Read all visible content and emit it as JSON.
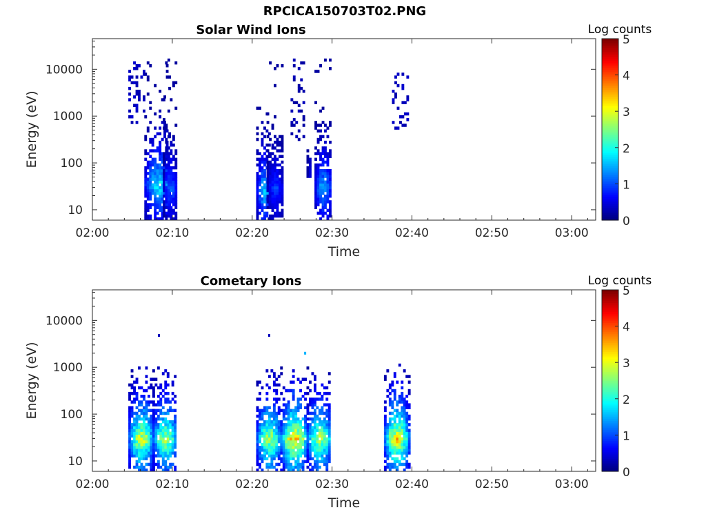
{
  "figure": {
    "title": "RPCICA150703T02.PNG",
    "background": "#ffffff"
  },
  "chart_data": [
    {
      "type": "heatmap",
      "title": "Solar Wind Ions",
      "xlabel": "Time",
      "ylabel": "Energy (eV)",
      "x_ticks": [
        "02:00",
        "02:10",
        "02:20",
        "02:30",
        "02:40",
        "02:50",
        "03:00"
      ],
      "x_range_minutes": [
        0,
        63
      ],
      "y_scale": "log",
      "y_ticks": [
        "10",
        "100",
        "1000",
        "10000"
      ],
      "y_range": [
        6,
        45000
      ],
      "colorbar": {
        "label": "Log counts",
        "ticks": [
          "0",
          "1",
          "2",
          "3",
          "4",
          "5"
        ],
        "range": [
          0,
          5
        ],
        "colormap": "jet"
      },
      "bursts": [
        {
          "t_start": 4.5,
          "t_end": 6.5,
          "e_min": 700,
          "e_max": 15000,
          "peak_log_counts": 0.4,
          "sparse": true
        },
        {
          "t_start": 6.5,
          "t_end": 9.8,
          "e_min": 6,
          "e_max": 15000,
          "peak_log_counts": 2.0,
          "core_energy": 35
        },
        {
          "t_start": 8.8,
          "t_end": 10.5,
          "e_min": 6,
          "e_max": 18000,
          "peak_log_counts": 1.2,
          "core_energy": 30
        },
        {
          "t_start": 20.5,
          "t_end": 22.3,
          "e_min": 6,
          "e_max": 4000,
          "peak_log_counts": 1.8,
          "core_energy": 25
        },
        {
          "t_start": 21.8,
          "t_end": 23.8,
          "e_min": 6,
          "e_max": 14000,
          "peak_log_counts": 1.0,
          "core_energy": 30
        },
        {
          "t_start": 24.8,
          "t_end": 26.5,
          "e_min": 300,
          "e_max": 18000,
          "peak_log_counts": 0.3,
          "sparse": true
        },
        {
          "t_start": 26.8,
          "t_end": 27.3,
          "e_min": 50,
          "e_max": 250,
          "peak_log_counts": 0.8
        },
        {
          "t_start": 27.8,
          "t_end": 29.8,
          "e_min": 6,
          "e_max": 20000,
          "peak_log_counts": 1.6,
          "core_energy": 30
        },
        {
          "t_start": 37.5,
          "t_end": 39.5,
          "e_min": 500,
          "e_max": 9000,
          "peak_log_counts": 0.4,
          "sparse": true
        }
      ]
    },
    {
      "type": "heatmap",
      "title": "Cometary Ions",
      "xlabel": "Time",
      "ylabel": "Energy (eV)",
      "x_ticks": [
        "02:00",
        "02:10",
        "02:20",
        "02:30",
        "02:40",
        "02:50",
        "03:00"
      ],
      "x_range_minutes": [
        0,
        63
      ],
      "y_scale": "log",
      "y_ticks": [
        "10",
        "100",
        "1000",
        "10000"
      ],
      "y_range": [
        6,
        45000
      ],
      "colorbar": {
        "label": "Log counts",
        "ticks": [
          "0",
          "1",
          "2",
          "3",
          "4",
          "5"
        ],
        "range": [
          0,
          5
        ],
        "colormap": "jet"
      },
      "bursts": [
        {
          "t_start": 4.5,
          "t_end": 7.5,
          "e_min": 6,
          "e_max": 1000,
          "peak_log_counts": 3.2,
          "core_energy": 30
        },
        {
          "t_start": 7.5,
          "t_end": 10.5,
          "e_min": 6,
          "e_max": 1200,
          "peak_log_counts": 3.0,
          "core_energy": 30
        },
        {
          "t_start": 20.5,
          "t_end": 23.5,
          "e_min": 6,
          "e_max": 1000,
          "peak_log_counts": 3.0,
          "core_energy": 30
        },
        {
          "t_start": 23.5,
          "t_end": 26.8,
          "e_min": 6,
          "e_max": 1000,
          "peak_log_counts": 3.6,
          "core_energy": 30
        },
        {
          "t_start": 26.8,
          "t_end": 29.8,
          "e_min": 6,
          "e_max": 1000,
          "peak_log_counts": 3.0,
          "core_energy": 30
        },
        {
          "t_start": 36.5,
          "t_end": 39.5,
          "e_min": 6,
          "e_max": 1200,
          "peak_log_counts": 3.5,
          "core_energy": 30
        }
      ],
      "isolated_points": [
        {
          "t": 8.2,
          "e": 4800,
          "log_counts": 0.3
        },
        {
          "t": 22.0,
          "e": 4800,
          "log_counts": 0.3
        },
        {
          "t": 26.5,
          "e": 2000,
          "log_counts": 1.5
        }
      ]
    }
  ]
}
